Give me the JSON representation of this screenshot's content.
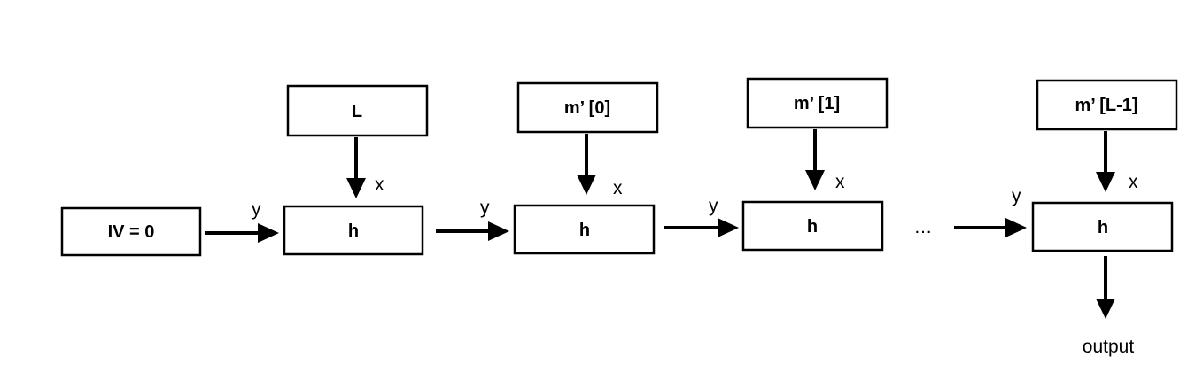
{
  "nodes": {
    "iv": "IV = 0",
    "h_length": "h",
    "h_block0": "h",
    "h_block1": "h",
    "h_last": "h"
  },
  "inputs": {
    "length": "L",
    "block0": "m’ [0]",
    "block1": "m’ [1]",
    "block_last": "m’ [L-1]"
  },
  "edge_labels": {
    "x": "x",
    "y": "y"
  },
  "ellipsis": "…",
  "output_label": "output"
}
